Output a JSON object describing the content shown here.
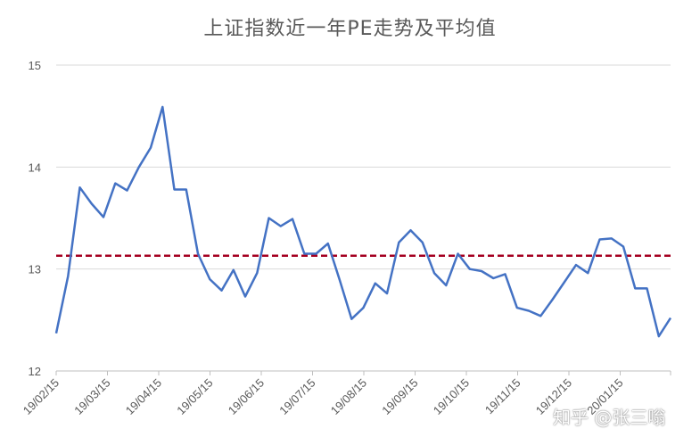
{
  "chart_data": {
    "type": "line",
    "title": "上证指数近一年PE走势及平均值",
    "ylim": [
      12,
      15
    ],
    "yticks": [
      12,
      13,
      14,
      15
    ],
    "x_tick_labels": [
      "19/02/15",
      "19/03/15",
      "19/04/15",
      "19/05/15",
      "19/06/15",
      "19/07/15",
      "19/08/15",
      "19/09/15",
      "19/10/15",
      "19/11/15",
      "19/12/15",
      "20/01/15"
    ],
    "grid": true,
    "legend": "none",
    "colors": {
      "series": "#4472C4",
      "average": "#A50021",
      "grid": "#D9D9D9"
    },
    "series": [
      {
        "values": [
          12.37,
          12.93,
          13.8,
          13.64,
          13.51,
          13.84,
          13.77,
          14.0,
          14.19,
          14.59,
          13.78,
          13.78,
          13.15,
          12.9,
          12.79,
          12.99,
          12.73,
          12.96,
          13.5,
          13.42,
          13.49,
          13.15,
          13.15,
          13.25,
          12.89,
          12.51,
          12.62,
          12.86,
          12.76,
          13.26,
          13.38,
          13.26,
          12.96,
          12.84,
          13.15,
          13.0,
          12.98,
          12.91,
          12.95,
          12.62,
          12.59,
          12.54,
          12.7,
          12.87,
          13.04,
          12.96,
          13.29,
          13.3,
          13.22,
          12.81,
          12.81,
          12.34,
          12.52
        ]
      }
    ],
    "average": 13.13
  },
  "watermark": "知乎 @张三嗡"
}
